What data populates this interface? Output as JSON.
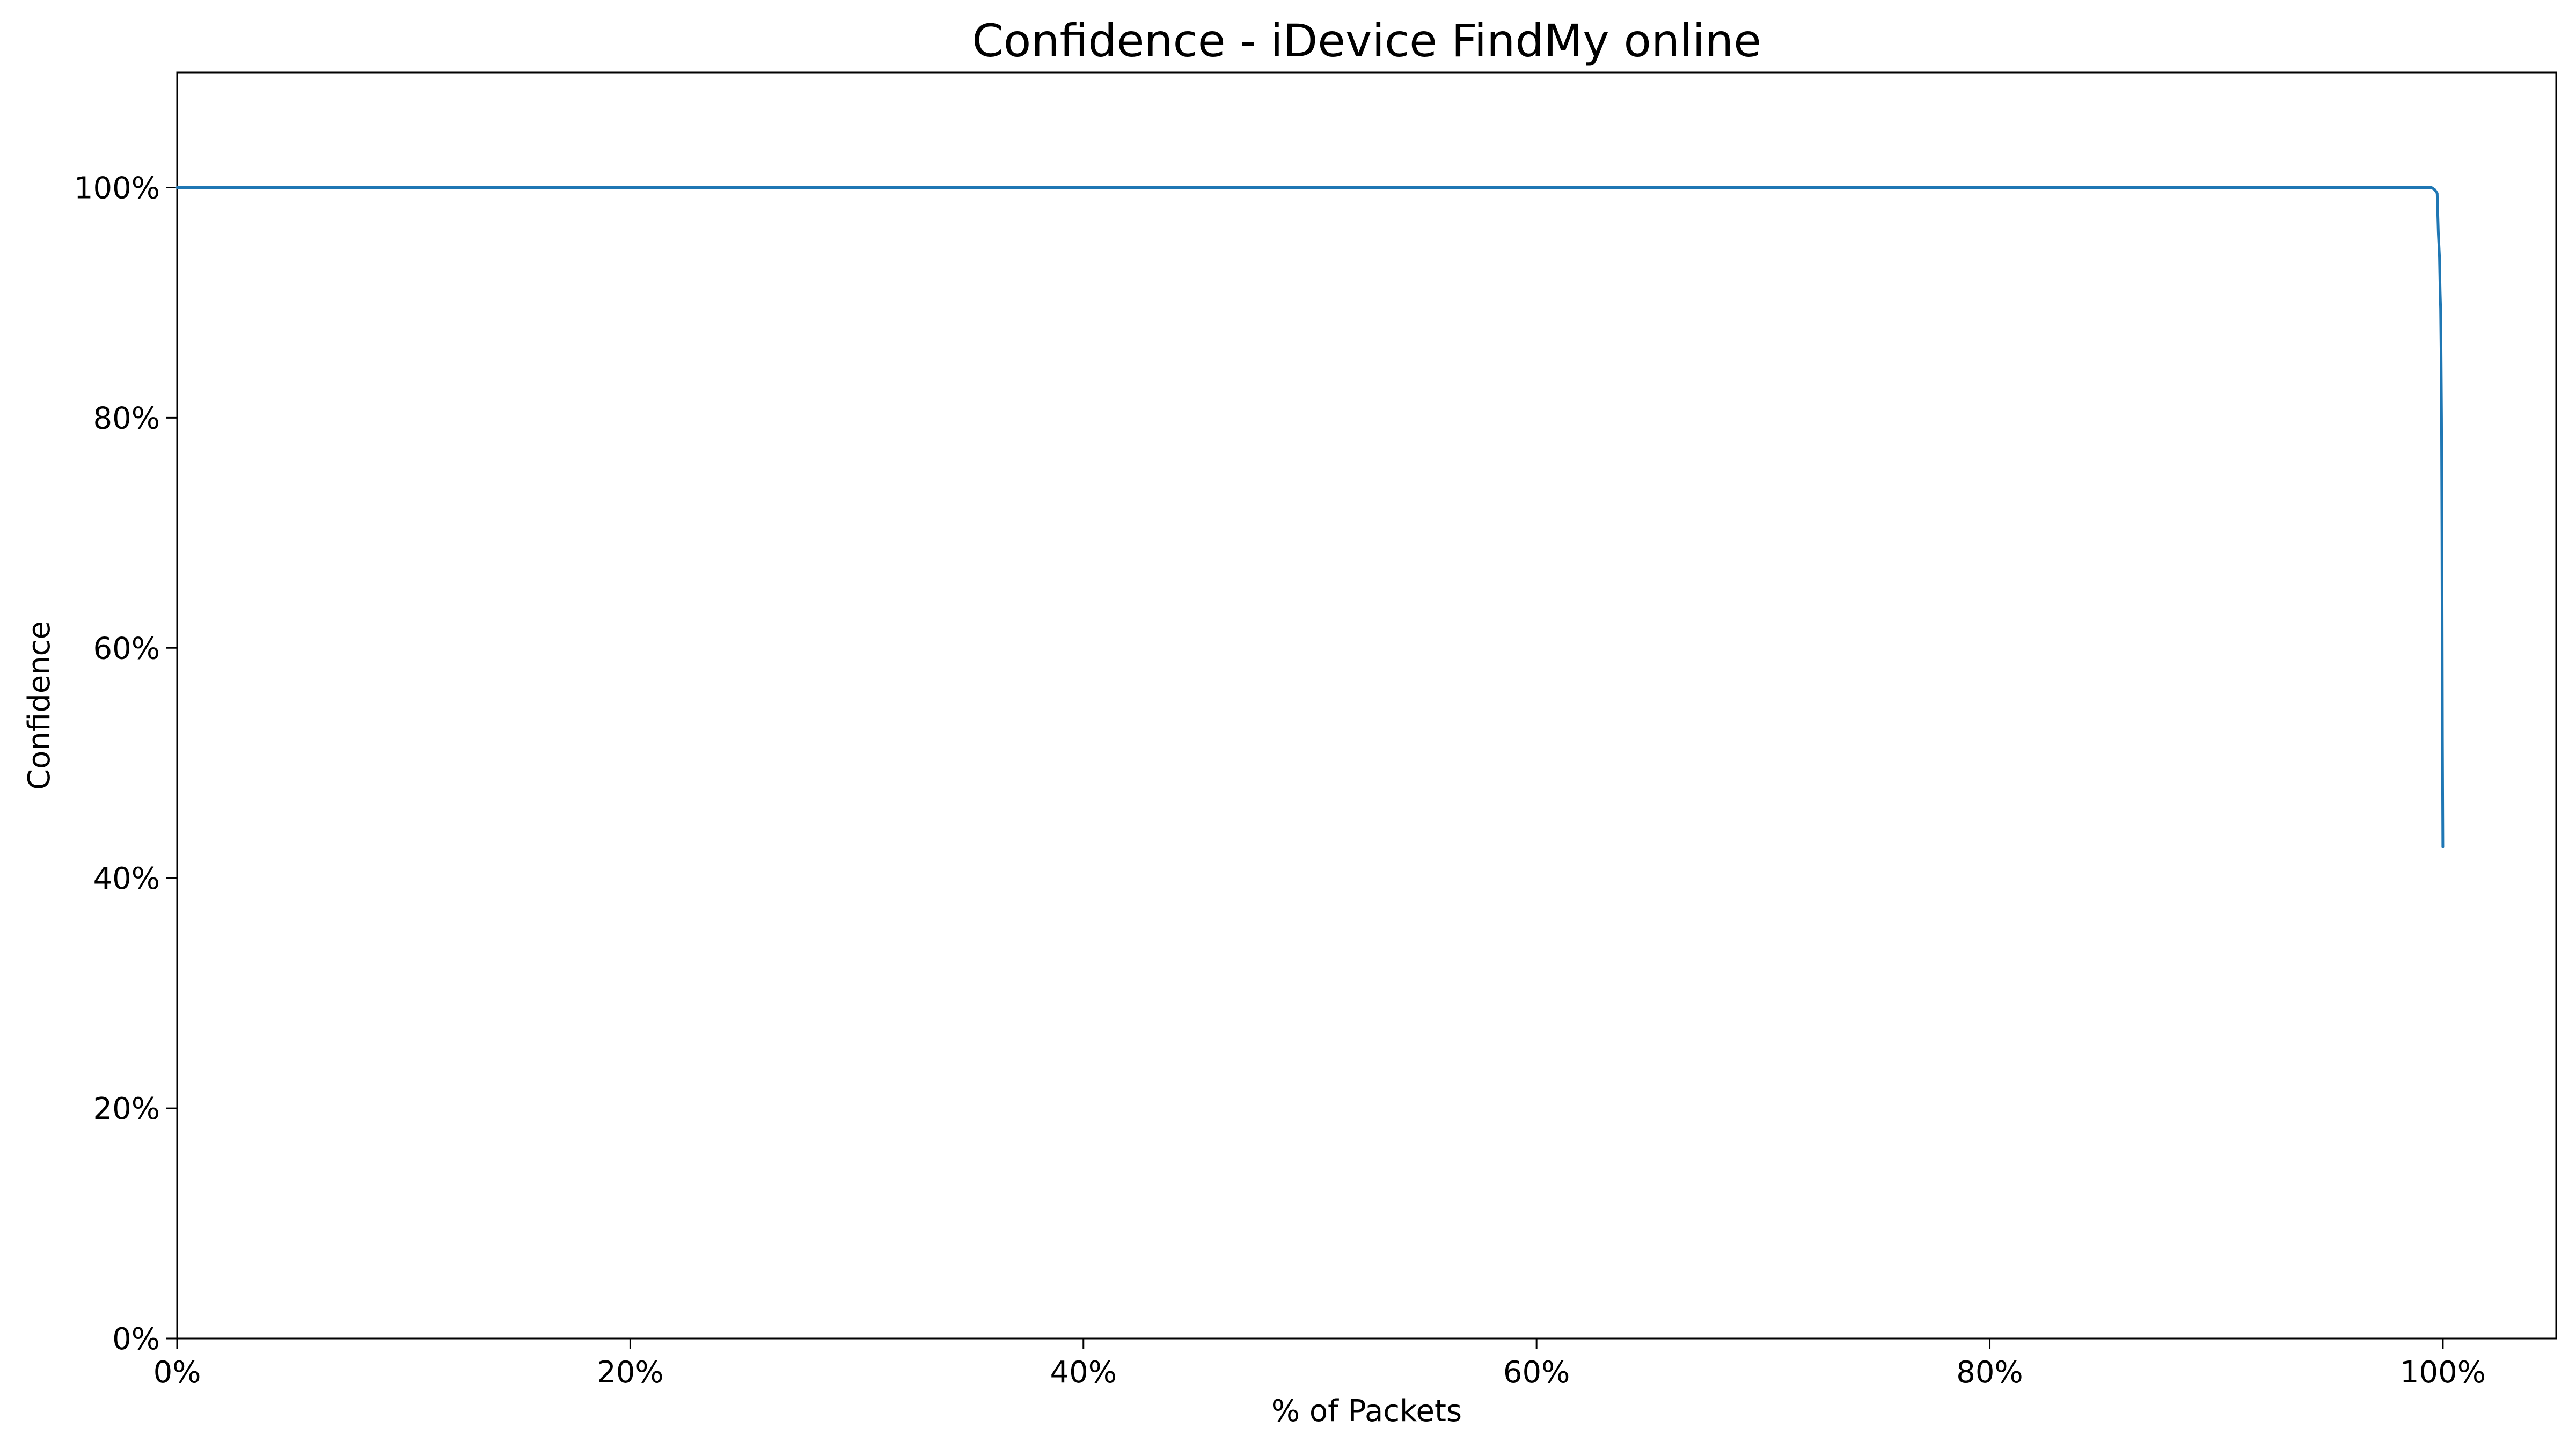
{
  "chart_data": {
    "type": "line",
    "title": "Confidence - iDevice FindMy online",
    "xlabel": "% of Packets",
    "ylabel": "Confidence",
    "xlim": [
      0,
      105
    ],
    "ylim": [
      0,
      110
    ],
    "x_ticks": [
      0,
      20,
      40,
      60,
      80,
      100
    ],
    "x_tick_labels": [
      "0%",
      "20%",
      "40%",
      "60%",
      "80%",
      "100%"
    ],
    "y_ticks": [
      0,
      20,
      40,
      60,
      80,
      100
    ],
    "y_tick_labels": [
      "0%",
      "20%",
      "40%",
      "60%",
      "80%",
      "100%"
    ],
    "grid": false,
    "series": [
      {
        "color": "#1f77b4",
        "x": [
          0,
          99.0,
          99.5,
          99.65,
          99.75,
          99.8,
          99.85,
          99.88,
          99.9,
          99.92,
          99.94,
          99.96,
          99.98,
          100
        ],
        "y": [
          100,
          100,
          100,
          99.8,
          99.5,
          96,
          94,
          91,
          89.5,
          86,
          80,
          70,
          52,
          42.7
        ]
      }
    ]
  }
}
